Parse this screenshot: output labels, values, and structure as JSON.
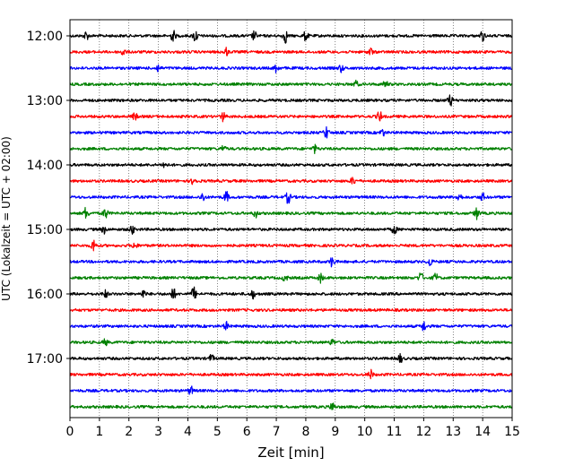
{
  "chart_data": {
    "type": "line",
    "title": "",
    "xlabel": "Zeit  [min]",
    "ylabel": "UTC (Lokalzeit = UTC + 02:00)",
    "xlim": [
      0,
      15
    ],
    "x_ticks": [
      "0",
      "1",
      "2",
      "3",
      "4",
      "5",
      "6",
      "7",
      "8",
      "9",
      "10",
      "11",
      "12",
      "13",
      "14",
      "15"
    ],
    "y_ticks": [
      {
        "label": "12:00",
        "row": 0
      },
      {
        "label": "13:00",
        "row": 4
      },
      {
        "label": "14:00",
        "row": 8
      },
      {
        "label": "15:00",
        "row": 12
      },
      {
        "label": "16:00",
        "row": 16
      },
      {
        "label": "17:00",
        "row": 20
      }
    ],
    "grid": "vertical dotted at each minute",
    "rows": 24,
    "row_interval_min": 15,
    "color_cycle": [
      "#000000",
      "#ff0000",
      "#0000ff",
      "#008000"
    ],
    "events": [
      [
        0.55,
        0.35,
        3.5,
        0.45,
        4.25,
        0.55,
        6.25,
        0.35,
        7.3,
        0.55,
        8.0,
        0.4,
        14.0,
        0.4
      ],
      [
        1.8,
        0.3,
        5.3,
        0.3,
        10.2,
        0.3
      ],
      [
        3.0,
        0.3,
        7.0,
        0.35,
        9.2,
        0.3
      ],
      [
        9.7,
        0.25,
        10.7,
        0.3
      ],
      [
        12.9,
        0.45
      ],
      [
        2.2,
        0.3,
        5.2,
        0.35,
        10.5,
        0.45
      ],
      [
        8.7,
        0.5,
        10.6,
        0.3
      ],
      [
        5.2,
        0.25,
        8.3,
        0.3
      ],
      [
        3.2,
        0.25
      ],
      [
        4.2,
        0.35,
        9.6,
        0.3
      ],
      [
        4.5,
        0.35,
        5.3,
        0.45,
        7.4,
        0.5,
        13.2,
        0.4,
        14.0,
        0.3
      ],
      [
        0.55,
        0.5,
        1.2,
        0.45,
        6.3,
        0.3,
        13.8,
        0.45
      ],
      [
        1.15,
        0.3,
        2.1,
        0.4,
        11.0,
        0.4
      ],
      [
        0.8,
        0.5,
        2.2,
        0.3
      ],
      [
        8.9,
        0.45,
        12.2,
        0.35
      ],
      [
        7.3,
        0.3,
        8.5,
        0.35,
        11.9,
        0.45,
        12.4,
        0.35
      ],
      [
        1.2,
        0.3,
        2.5,
        0.3,
        3.5,
        0.5,
        4.2,
        0.55,
        6.2,
        0.35
      ],
      [],
      [
        5.3,
        0.3,
        12.0,
        0.4
      ],
      [
        1.2,
        0.25,
        8.9,
        0.25
      ],
      [
        4.8,
        0.3,
        11.2,
        0.35
      ],
      [
        10.2,
        0.35
      ],
      [
        4.1,
        0.35
      ],
      [
        8.9,
        0.35
      ]
    ]
  }
}
